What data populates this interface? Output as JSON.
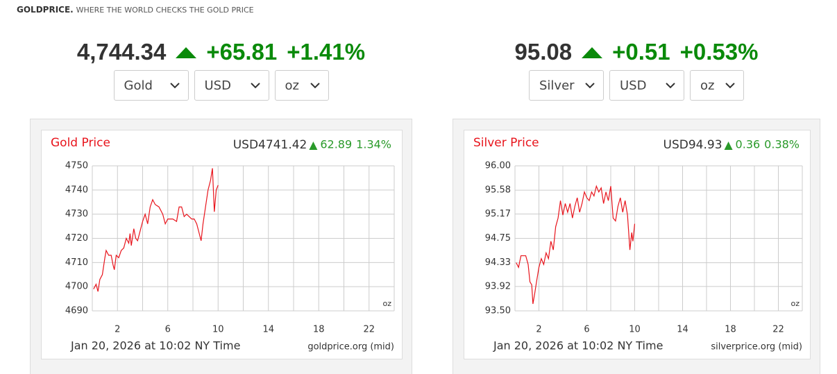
{
  "header": {
    "brand": "GOLDPRICE.",
    "tagline": "WHERE THE WORLD CHECKS THE GOLD PRICE"
  },
  "panels": [
    {
      "price": "4,744.34",
      "change": "+65.81",
      "change_pct": "+1.41%",
      "selects": [
        "Gold",
        "USD",
        "oz"
      ],
      "chart_data": {
        "type": "line",
        "title": "Gold Price",
        "quote": "USD4741.42",
        "quote_change": "62.89",
        "quote_pct": "1.34%",
        "color": "#e8141c",
        "unit": "oz",
        "footer": "Jan 20, 2026 at 10:02 NY Time",
        "source": "goldprice.org (mid)",
        "x": [
          0.1,
          0.3,
          0.45,
          0.6,
          0.8,
          1.0,
          1.1,
          1.3,
          1.5,
          1.65,
          1.75,
          1.9,
          2.1,
          2.3,
          2.5,
          2.7,
          2.9,
          3.0,
          3.1,
          3.3,
          3.45,
          3.6,
          3.8,
          4.0,
          4.2,
          4.4,
          4.6,
          4.8,
          5.0,
          5.3,
          5.6,
          5.8,
          6.0,
          6.4,
          6.7,
          6.9,
          7.1,
          7.3,
          7.5,
          7.7,
          7.9,
          8.1,
          8.3,
          8.5,
          8.65,
          8.8,
          9.0,
          9.2,
          9.4,
          9.55,
          9.7,
          9.85,
          10.0
        ],
        "values": [
          4699,
          4701,
          4698,
          4703,
          4705,
          4712,
          4715,
          4713,
          4713,
          4709,
          4707,
          4713,
          4712,
          4715,
          4716,
          4720,
          4718,
          4722,
          4717,
          4724,
          4720,
          4719,
          4723,
          4727,
          4730,
          4726,
          4733,
          4736,
          4734,
          4733,
          4730,
          4726,
          4728,
          4728,
          4727,
          4733,
          4733,
          4729,
          4730,
          4729,
          4728,
          4728,
          4726,
          4722,
          4719,
          4726,
          4733,
          4740,
          4744,
          4749,
          4731,
          4740,
          4742
        ],
        "xlim": [
          0,
          24
        ],
        "xticks": [
          2,
          6,
          10,
          14,
          18,
          22
        ],
        "xgrid": [
          0,
          2,
          4,
          6,
          8,
          10,
          12,
          14,
          16,
          18,
          20,
          22,
          24
        ],
        "ylim": [
          4690,
          4750
        ],
        "yticks": [
          4690,
          4700,
          4710,
          4720,
          4730,
          4740,
          4750
        ],
        "grid": true
      }
    },
    {
      "price": "95.08",
      "change": "+0.51",
      "change_pct": "+0.53%",
      "selects": [
        "Silver",
        "USD",
        "oz"
      ],
      "chart_data": {
        "type": "line",
        "title": "Silver Price",
        "quote": "USD94.93",
        "quote_change": "0.36",
        "quote_pct": "0.38%",
        "color": "#e8141c",
        "unit": "oz",
        "footer": "Jan 20, 2026 at 10:02 NY Time",
        "source": "silverprice.org (mid)",
        "x": [
          0.1,
          0.3,
          0.5,
          0.7,
          0.9,
          1.1,
          1.25,
          1.4,
          1.5,
          1.65,
          1.8,
          2.0,
          2.2,
          2.4,
          2.6,
          2.8,
          3.0,
          3.2,
          3.4,
          3.6,
          3.8,
          4.0,
          4.2,
          4.4,
          4.6,
          4.8,
          5.0,
          5.2,
          5.4,
          5.6,
          5.8,
          6.0,
          6.2,
          6.4,
          6.6,
          6.8,
          7.0,
          7.2,
          7.4,
          7.6,
          7.8,
          8.0,
          8.2,
          8.4,
          8.6,
          8.8,
          9.0,
          9.2,
          9.4,
          9.6,
          9.75,
          9.85,
          10.0
        ],
        "values": [
          94.33,
          94.25,
          94.45,
          94.45,
          94.45,
          94.3,
          94.0,
          93.95,
          93.62,
          93.8,
          94.0,
          94.25,
          94.4,
          94.3,
          94.5,
          94.4,
          94.7,
          94.55,
          94.95,
          95.1,
          95.4,
          95.15,
          95.35,
          95.2,
          95.35,
          95.1,
          95.3,
          95.45,
          95.2,
          95.35,
          95.55,
          95.45,
          95.4,
          95.55,
          95.48,
          95.65,
          95.55,
          95.62,
          95.35,
          95.55,
          95.4,
          95.65,
          95.1,
          95.05,
          95.3,
          95.45,
          95.2,
          95.4,
          95.15,
          94.55,
          94.85,
          94.7,
          95.0
        ],
        "xlim": [
          0,
          24
        ],
        "xticks": [
          2,
          6,
          10,
          14,
          18,
          22
        ],
        "xgrid": [
          0,
          2,
          4,
          6,
          8,
          10,
          12,
          14,
          16,
          18,
          20,
          22,
          24
        ],
        "ylim": [
          93.5,
          96
        ],
        "yticks": [
          {
            "value": 93.5,
            "label": "93.50"
          },
          93.92,
          94.33,
          94.75,
          95.17,
          95.58,
          {
            "value": 96,
            "label": "96.00"
          }
        ],
        "grid": true
      }
    }
  ]
}
